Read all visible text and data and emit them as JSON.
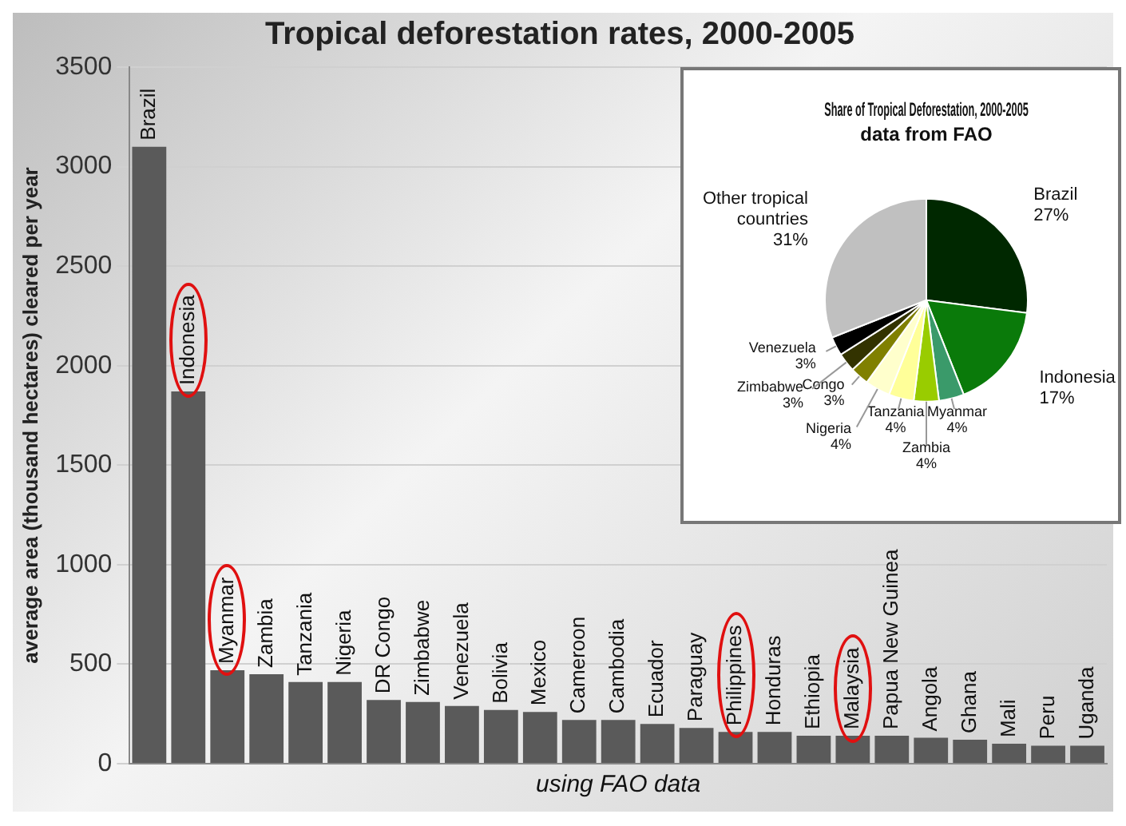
{
  "chart_data": [
    {
      "type": "bar",
      "title": "Tropical deforestation rates, 2000-2005",
      "ylabel": "average area (thousand hectares) cleared per year",
      "categories": [
        "Brazil",
        "Indonesia",
        "Myanmar",
        "Zambia",
        "Tanzania",
        "Nigeria",
        "DR Congo",
        "Zimbabwe",
        "Venezuela",
        "Bolivia",
        "Mexico",
        "Cameroon",
        "Cambodia",
        "Ecuador",
        "Paraguay",
        "Philippines",
        "Honduras",
        "Ethiopia",
        "Malaysia",
        "Papua New Guinea",
        "Angola",
        "Ghana",
        "Mali",
        "Peru",
        "Uganda"
      ],
      "values": [
        3100,
        1870,
        470,
        450,
        410,
        410,
        320,
        310,
        290,
        270,
        260,
        220,
        220,
        200,
        180,
        160,
        160,
        140,
        140,
        140,
        130,
        120,
        100,
        90,
        90
      ],
      "color": "#5a5a5a",
      "ylim": [
        0,
        3500
      ],
      "yticks": [
        0,
        500,
        1000,
        1500,
        2000,
        2500,
        3000,
        3500
      ],
      "grid": "y",
      "annotations": [
        "using FAO data"
      ]
    },
    {
      "type": "pie",
      "title": "Share of Tropical Deforestation, 2000-2005",
      "subtitle": "data from FAO",
      "categories": [
        "Brazil",
        "Indonesia",
        "Myanmar",
        "Zambia",
        "Tanzania",
        "Nigeria",
        "Congo",
        "Zimbabwe",
        "Venezuela",
        "Other tropical countries"
      ],
      "values": [
        27,
        17,
        4,
        4,
        4,
        4,
        3,
        3,
        3,
        31
      ],
      "colors": [
        "#002800",
        "#0a7a0a",
        "#3a9a6a",
        "#99cc00",
        "#ffff99",
        "#ffffcc",
        "#808000",
        "#333300",
        "#000000",
        "#c0c0c0"
      ],
      "value_labels": [
        "27%",
        "17%",
        "4%",
        "4%",
        "4%",
        "4%",
        "3%",
        "3%",
        "3%",
        "31%"
      ]
    }
  ]
}
